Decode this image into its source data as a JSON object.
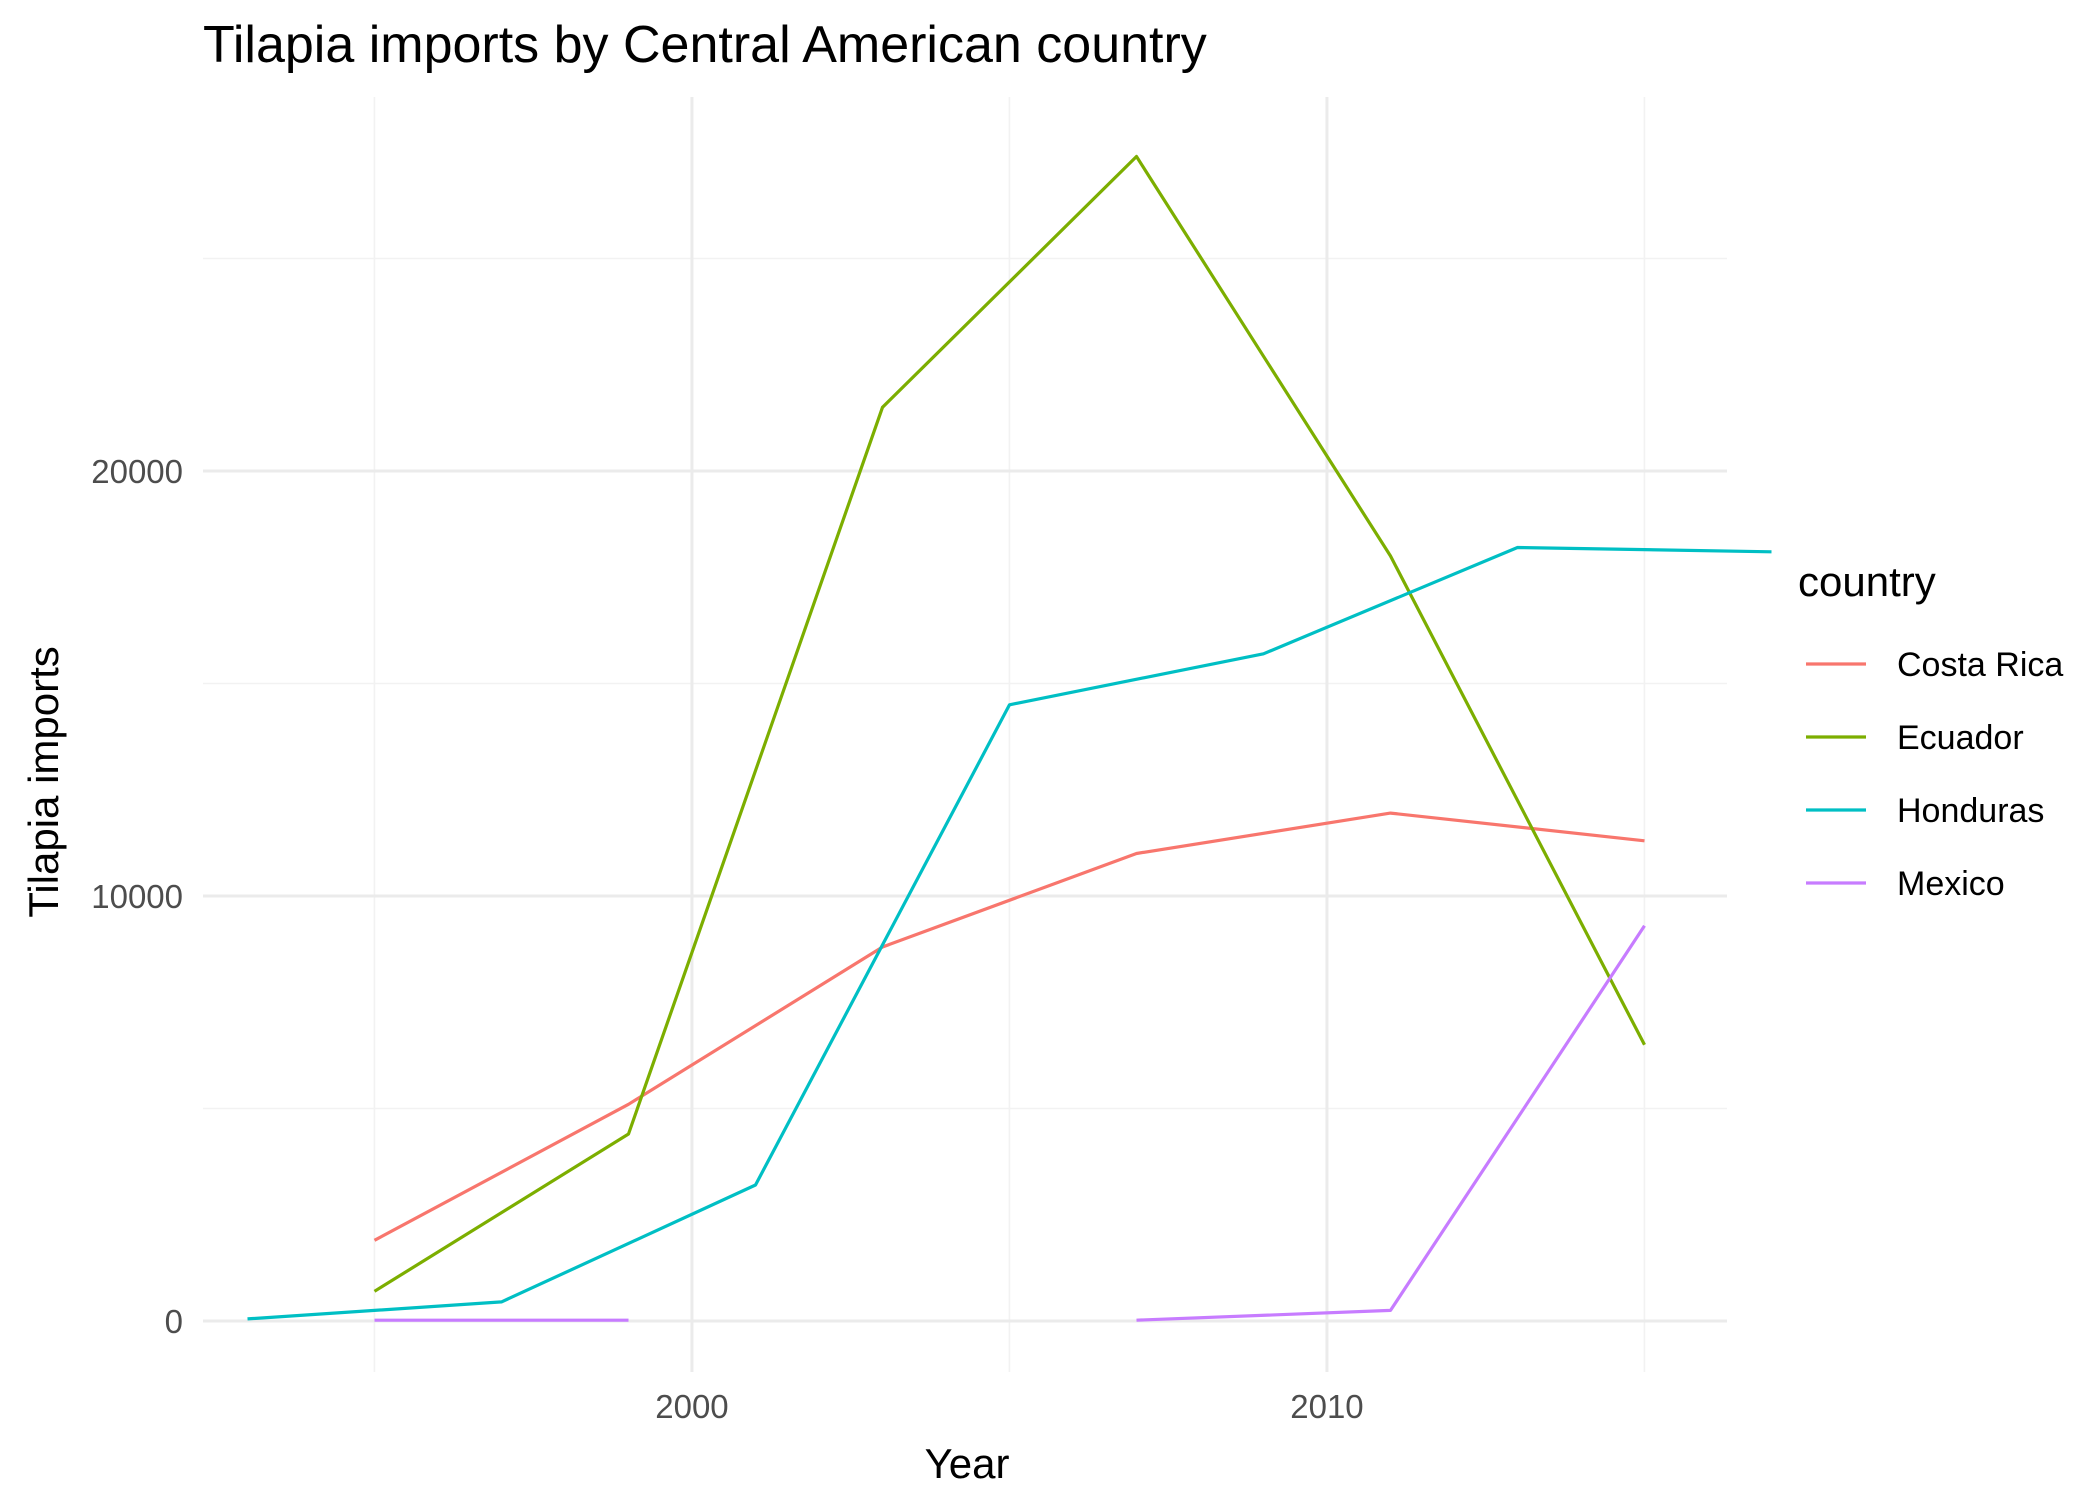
{
  "chart_data": {
    "type": "line",
    "title": "Tilapia imports by Central American country",
    "xlabel": "Year",
    "ylabel": "Tilapia imports",
    "xlim": [
      1992.3,
      2016.3
    ],
    "ylim": [
      -1200,
      28800
    ],
    "x_ticks": [
      2000,
      2010
    ],
    "x_tick_labels": [
      "2000",
      "2010"
    ],
    "x_minor_ticks": [
      1995,
      2005,
      2015
    ],
    "y_ticks": [
      0,
      10000,
      20000
    ],
    "y_tick_labels": [
      "0",
      "10000",
      "20000"
    ],
    "y_minor_ticks": [
      5000,
      15000,
      25000
    ],
    "grid": true,
    "legend": {
      "title": "country",
      "position": "right"
    },
    "series": [
      {
        "name": "Costa Rica",
        "color": "#F8766D",
        "segments": [
          [
            [
              1995,
              1900
            ],
            [
              1999,
              5100
            ],
            [
              2003,
              8800
            ],
            [
              2007,
              11000
            ],
            [
              2011,
              11950
            ],
            [
              2015,
              11300
            ]
          ]
        ]
      },
      {
        "name": "Ecuador",
        "color": "#7CAE00",
        "segments": [
          [
            [
              1995,
              700
            ],
            [
              1999,
              4400
            ],
            [
              2003,
              21500
            ],
            [
              2007,
              27400
            ],
            [
              2011,
              18000
            ],
            [
              2015,
              6500
            ]
          ]
        ]
      },
      {
        "name": "Honduras",
        "color": "#00BFC4",
        "segments": [
          [
            [
              1993,
              50
            ],
            [
              1997,
              450
            ],
            [
              2001,
              3200
            ],
            [
              2005,
              14500
            ],
            [
              2009,
              15700
            ],
            [
              2013,
              18200
            ],
            [
              2017,
              18100
            ]
          ]
        ]
      },
      {
        "name": "Mexico",
        "color": "#C77CFF",
        "segments": [
          [
            [
              1995,
              20
            ],
            [
              1999,
              20
            ]
          ],
          [
            [
              2007,
              20
            ],
            [
              2011,
              250
            ],
            [
              2015,
              9300
            ]
          ]
        ]
      }
    ]
  }
}
